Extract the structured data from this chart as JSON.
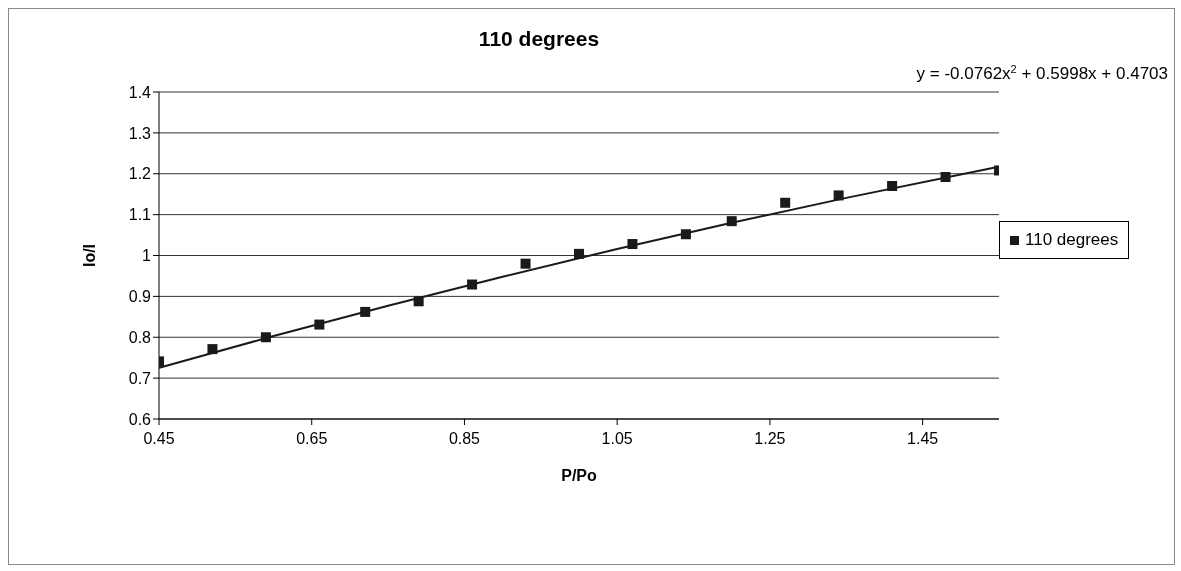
{
  "chart_data": {
    "type": "scatter",
    "title": "110 degrees",
    "xlabel": "P/Po",
    "ylabel": "Io/I",
    "annotations": [
      "y = -0.0762x$^{2}$ + 0.5998x + 0.4703"
    ],
    "xlim": [
      0.45,
      1.55
    ],
    "xticks": [
      0.45,
      0.65,
      0.85,
      1.05,
      1.25,
      1.45
    ],
    "ylim": [
      0.6,
      1.4
    ],
    "yticks": [
      0.6,
      0.7,
      0.8,
      0.9,
      1,
      1.1,
      1.2,
      1.3,
      1.4
    ],
    "grid": "y",
    "legend": "right",
    "marker": "square",
    "series": [
      {
        "name": "110 degrees",
        "color": "#1a1a1a",
        "x": [
          0.45,
          0.52,
          0.59,
          0.66,
          0.72,
          0.79,
          0.86,
          0.93,
          1.0,
          1.07,
          1.14,
          1.2,
          1.27,
          1.34,
          1.41,
          1.48,
          1.55
        ],
        "values": [
          0.741,
          0.771,
          0.8,
          0.831,
          0.862,
          0.888,
          0.929,
          0.98,
          1.004,
          1.028,
          1.052,
          1.084,
          1.129,
          1.147,
          1.17,
          1.192,
          1.208
        ]
      },
      {
        "type": "line",
        "color": "#1a1a1a",
        "marker": "none",
        "x": [
          0.45,
          0.6,
          0.75,
          0.9,
          1.05,
          1.2,
          1.35,
          1.55
        ],
        "values": [
          0.725,
          0.803,
          0.877,
          0.948,
          1.016,
          1.08,
          1.141,
          1.217
        ]
      }
    ]
  }
}
